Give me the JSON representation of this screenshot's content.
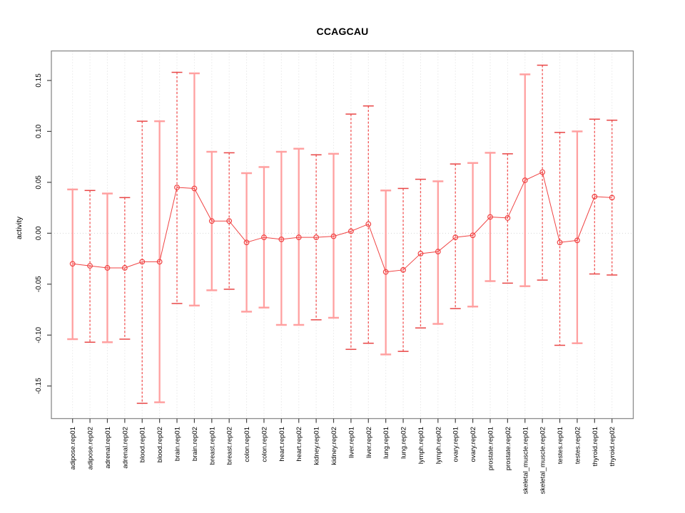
{
  "figure": {
    "title": "CCAGCAU",
    "ylabel": "activity"
  },
  "chart_data": {
    "type": "line",
    "variant": "point-estimates-with-error-bars",
    "title": "CCAGCAU",
    "xlabel": "",
    "ylabel": "activity",
    "ylim": [
      -0.182,
      0.179
    ],
    "yticks": [
      -0.15,
      -0.1,
      -0.05,
      0.0,
      0.05,
      0.1,
      0.15
    ],
    "grid": "dotted vertical line per category and dotted horizontal line at y=0",
    "legend": "none",
    "categories": [
      "adipose.rep01",
      "adipose.rep02",
      "adrenal.rep01",
      "adrenal.rep02",
      "blood.rep01",
      "blood.rep02",
      "brain.rep01",
      "brain.rep02",
      "breast.rep01",
      "breast.rep02",
      "colon.rep01",
      "colon.rep02",
      "heart.rep01",
      "heart.rep02",
      "kidney.rep01",
      "kidney.rep02",
      "liver.rep01",
      "liver.rep02",
      "lung.rep01",
      "lung.rep02",
      "lymph.rep01",
      "lymph.rep02",
      "ovary.rep01",
      "ovary.rep02",
      "prostate.rep01",
      "prostate.rep02",
      "skeletal_muscle.rep01",
      "skeletal_muscle.rep02",
      "testes.rep01",
      "testes.rep02",
      "thyroid.rep01",
      "thyroid.rep02"
    ],
    "series": [
      {
        "name": "CCAGCAU activity",
        "values": [
          -0.03,
          -0.032,
          -0.034,
          -0.034,
          -0.028,
          -0.028,
          0.045,
          0.044,
          0.012,
          0.012,
          -0.009,
          -0.004,
          -0.006,
          -0.004,
          -0.004,
          -0.003,
          0.002,
          0.009,
          -0.038,
          -0.036,
          -0.02,
          -0.018,
          -0.004,
          -0.002,
          0.016,
          0.015,
          0.052,
          0.06,
          -0.009,
          -0.007,
          0.036,
          0.035
        ],
        "error_low": [
          -0.104,
          -0.107,
          -0.107,
          -0.104,
          -0.167,
          -0.166,
          -0.069,
          -0.071,
          -0.056,
          -0.055,
          -0.077,
          -0.073,
          -0.09,
          -0.09,
          -0.085,
          -0.083,
          -0.114,
          -0.108,
          -0.119,
          -0.116,
          -0.093,
          -0.089,
          -0.074,
          -0.072,
          -0.047,
          -0.049,
          -0.052,
          -0.046,
          -0.11,
          -0.108,
          -0.04,
          -0.041
        ],
        "error_high": [
          0.043,
          0.042,
          0.039,
          0.035,
          0.11,
          0.11,
          0.158,
          0.157,
          0.08,
          0.079,
          0.059,
          0.065,
          0.08,
          0.083,
          0.077,
          0.078,
          0.117,
          0.125,
          0.042,
          0.044,
          0.053,
          0.051,
          0.068,
          0.069,
          0.079,
          0.078,
          0.156,
          0.165,
          0.099,
          0.1,
          0.112,
          0.111
        ],
        "bar_styles": [
          "solid",
          "dashed",
          "solid",
          "dashed",
          "dashed",
          "solid",
          "dashed",
          "solid",
          "solid",
          "dashed",
          "solid",
          "solid",
          "solid",
          "solid",
          "dashed",
          "solid",
          "dashed",
          "dashed",
          "solid",
          "dashed",
          "dashed",
          "solid",
          "dashed",
          "solid",
          "solid",
          "dashed",
          "solid",
          "dashed",
          "dashed",
          "solid",
          "dashed",
          "dashed"
        ]
      }
    ],
    "colors": {
      "point": "#f04343",
      "series_line": "#f04343",
      "error_bar_solid": "#ffa0a0",
      "error_bar_dashed": "#f25555",
      "error_cap_solid": "#ffa0a0",
      "error_cap_dashed": "#e84545",
      "grid": "#dcdcdc",
      "zero_line": "#d8d8d8",
      "box": "#8a8a8a",
      "tick": "#444444"
    }
  }
}
